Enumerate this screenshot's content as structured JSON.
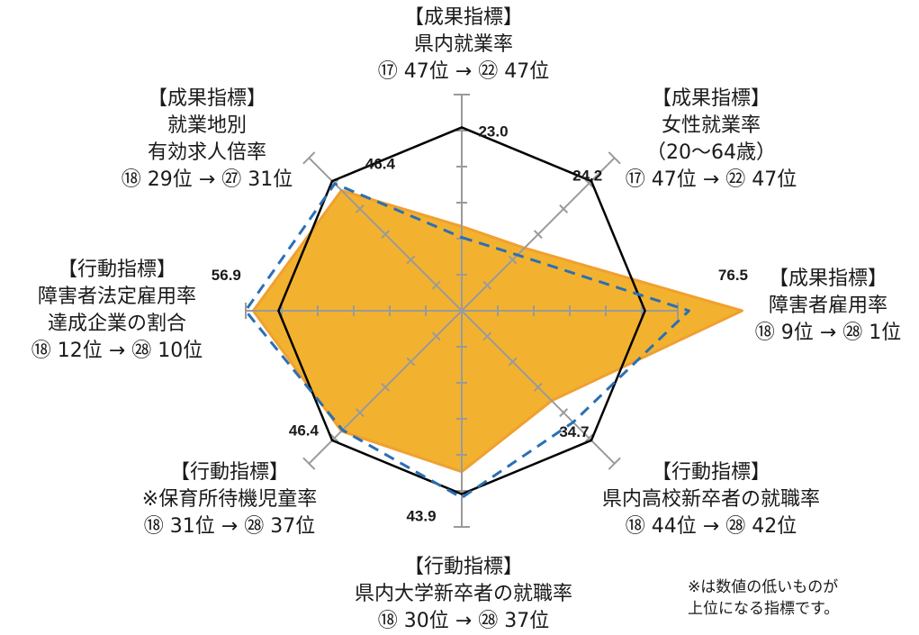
{
  "chart_data": {
    "type": "radar",
    "axes": [
      {
        "category": "【成果指標】",
        "name": "県内就業率",
        "rank": "⑰ 47位 → ㉒ 47位",
        "value_label": "23.0",
        "value": 23.0,
        "baseline": 20.0
      },
      {
        "category": "【成果指標】",
        "name": "女性就業率\n（20〜64歳）",
        "rank": "⑰ 47位 → ㉒ 47位",
        "value_label": "24.2",
        "value": 24.2,
        "baseline": 21.5
      },
      {
        "category": "【成果指標】",
        "name": "障害者雇用率",
        "rank": "⑱ 9位 → ㉘ 1位",
        "value_label": "76.5",
        "value": 76.5,
        "baseline": 62.0
      },
      {
        "category": "【行動指標】",
        "name": "県内高校新卒者の就職率",
        "rank": "⑱ 44位 → ㉘ 42位",
        "value_label": "34.7",
        "value": 34.7,
        "baseline": 43.0
      },
      {
        "category": "【行動指標】",
        "name": "県内大学新卒者の就職率",
        "rank": "⑱ 30位 → ㉘ 37位",
        "value_label": "43.9",
        "value": 43.9,
        "baseline": 51.0
      },
      {
        "category": "【行動指標】",
        "name": "※保育所待機児童率",
        "rank": "⑱ 31位 → ㉘ 37位",
        "value_label": "46.4",
        "value": 46.4,
        "baseline": 46.0
      },
      {
        "category": "【行動指標】",
        "name": "障害者法定雇用率\n達成企業の割合",
        "rank": "⑱ 12位 → ㉘ 10位",
        "value_label": "56.9",
        "value": 56.9,
        "baseline": 59.0
      },
      {
        "category": "【成果指標】",
        "name": "就業地別\n有効求人倍率",
        "rank": "⑱ 29位 → ㉗ 31位",
        "value_label": "46.4",
        "value": 46.4,
        "baseline": 49.0
      }
    ],
    "reference_value": 50,
    "range": [
      0,
      70
    ],
    "series_colors": {
      "current": "#f2b230",
      "current_stroke": "#f0a030",
      "baseline": "#2a6fb5",
      "reference": "#000000"
    }
  },
  "note": "※は数値の低いものが\n上位になる指標です。"
}
